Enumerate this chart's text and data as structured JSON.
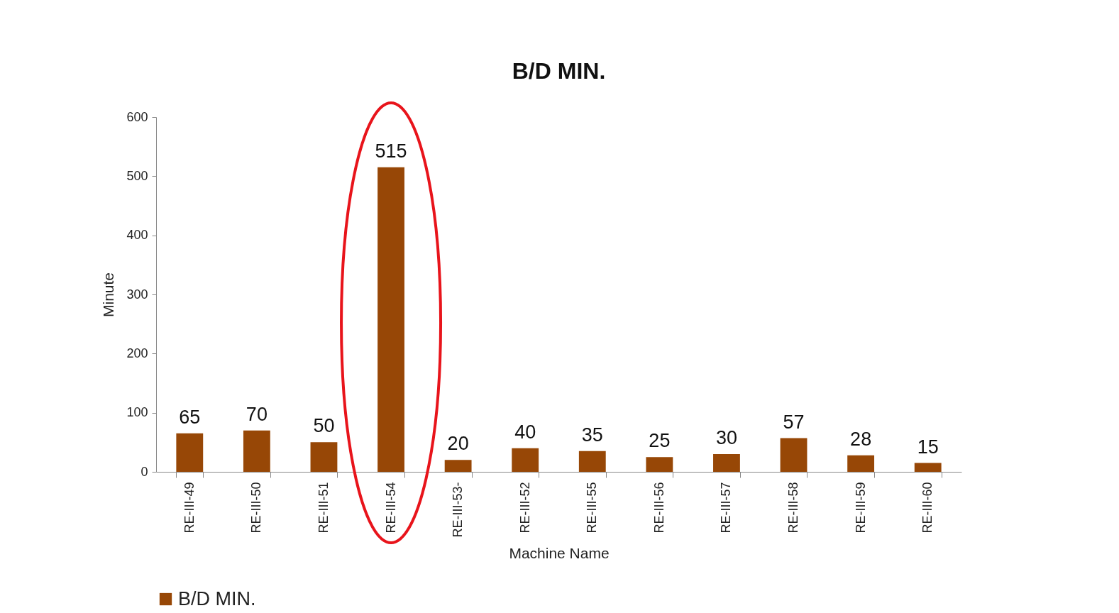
{
  "chart_data": {
    "type": "bar",
    "title": "B/D MIN.",
    "xlabel": "Machine Name",
    "ylabel": "Minute",
    "categories": [
      "RE-III-49",
      "RE-III-50",
      "RE-III-51",
      "RE-III-54",
      "RE-III-53-",
      "RE-III-52",
      "RE-III-55",
      "RE-III-56",
      "RE-III-57",
      "RE-III-58",
      "RE-III-59",
      "RE-III-60"
    ],
    "series": [
      {
        "name": "B/D MIN.",
        "color": "#974706",
        "values": [
          65,
          70,
          50,
          515,
          20,
          40,
          35,
          25,
          30,
          57,
          28,
          15
        ]
      }
    ],
    "ylim": [
      0,
      600
    ],
    "yticks": [
      0,
      100,
      200,
      300,
      400,
      500,
      600
    ],
    "data_labels": true,
    "legend": "bottom",
    "grid": false
  }
}
